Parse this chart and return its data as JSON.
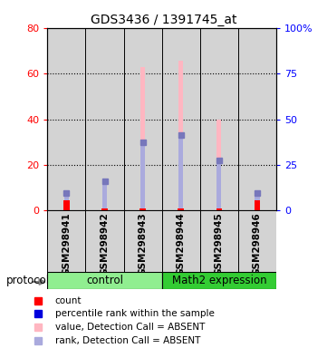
{
  "title": "GDS3436 / 1391745_at",
  "samples": [
    "GSM298941",
    "GSM298942",
    "GSM298943",
    "GSM298944",
    "GSM298945",
    "GSM298946"
  ],
  "value_absent": [
    5.5,
    10.5,
    63.0,
    65.5,
    40.0,
    6.5
  ],
  "rank_absent": [
    7.5,
    13.0,
    30.0,
    33.0,
    22.0,
    7.5
  ],
  "count_red": [
    4.5,
    0.8,
    0.8,
    0.8,
    0.8,
    4.5
  ],
  "ylim_left": [
    0,
    80
  ],
  "ylim_right": [
    0,
    100
  ],
  "yticks_left": [
    0,
    20,
    40,
    60,
    80
  ],
  "yticks_right": [
    0,
    25,
    50,
    75,
    100
  ],
  "ytick_labels_left": [
    "0",
    "20",
    "40",
    "60",
    "80"
  ],
  "ytick_labels_right": [
    "0",
    "25",
    "50",
    "75",
    "100%"
  ],
  "value_color": "#FFB6C1",
  "rank_color": "#AAAADD",
  "count_color": "#FF0000",
  "rank_dot_color": "#7777BB",
  "bg_color": "#D3D3D3",
  "plot_bg": "#FFFFFF",
  "legend_items": [
    "count",
    "percentile rank within the sample",
    "value, Detection Call = ABSENT",
    "rank, Detection Call = ABSENT"
  ],
  "legend_colors": [
    "#FF0000",
    "#0000DD",
    "#FFB6C1",
    "#AAAADD"
  ],
  "ctrl_color": "#90EE90",
  "math_color": "#33CC33"
}
